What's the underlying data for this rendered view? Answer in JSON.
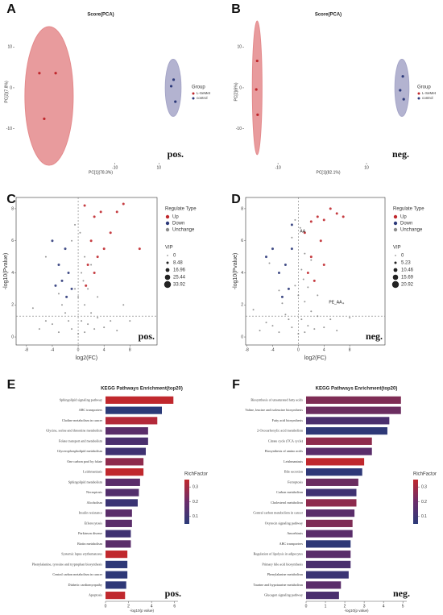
{
  "chart_data": [
    {
      "type": "pca",
      "panel": "A",
      "title": "Score(PCA)",
      "xlabel": "PC[1](78.3%)",
      "ylabel": "PC[2](7.8%)",
      "xlim": [
        -55,
        22
      ],
      "xticks": [
        -10,
        10
      ],
      "ylim": [
        -18,
        16
      ],
      "yticks": [
        -10,
        0,
        10
      ],
      "legend_title": "Group",
      "annotation": "pos.",
      "series": [
        {
          "name": "L-SeMet",
          "color": "#c0282d",
          "x": [
            -44.4,
            -37,
            -42.2
          ],
          "values": [
            3.6,
            3.6,
            -7.6
          ],
          "ellipse": {
            "cx": -40,
            "cy": -2,
            "rx": 11,
            "ry": 17,
            "color": "#e48a8c"
          }
        },
        {
          "name": "control",
          "color": "#2d3a7a",
          "x": [
            15.6,
            16.7,
            17.5
          ],
          "values": [
            0.4,
            2,
            -3.4
          ],
          "ellipse": {
            "cx": 16.5,
            "cy": 0,
            "rx": 3.6,
            "ry": 7,
            "color": "#a6a6c8"
          }
        }
      ]
    },
    {
      "type": "pca",
      "panel": "B",
      "title": "Score(PCA)",
      "xlabel": "PC[1](82.1%)",
      "ylabel": "PC[2](6%)",
      "xlim": [
        -17.3,
        20
      ],
      "xticks": [
        -10,
        10
      ],
      "ylim": [
        -18,
        16
      ],
      "yticks": [
        -10,
        0,
        10
      ],
      "legend_title": "Group",
      "annotation": "neg.",
      "series": [
        {
          "name": "L-SeMet",
          "color": "#c0282d",
          "x": [
            -14.7,
            -14.9,
            -14.6
          ],
          "values": [
            6.6,
            -0.4,
            -6.6
          ],
          "ellipse": {
            "cx": -14.7,
            "cy": 0,
            "rx": 1.1,
            "ry": 16.4,
            "color": "#e48a8c"
          }
        },
        {
          "name": "control",
          "color": "#2d3a7a",
          "x": [
            18.2,
            17.6,
            18.4
          ],
          "values": [
            2.8,
            -0.6,
            -2.8
          ],
          "ellipse": {
            "cx": 18,
            "cy": 0,
            "rx": 1.6,
            "ry": 7,
            "color": "#a6a6c8"
          }
        }
      ]
    },
    {
      "type": "volcano",
      "panel": "C",
      "xlabel": "log2(FC)",
      "ylabel": "-log10(Pvalue)",
      "xlim": [
        -9.6,
        12.2
      ],
      "xticks": [
        -8,
        -4,
        0,
        4,
        8
      ],
      "ylim": [
        -0.5,
        8.7
      ],
      "yticks": [
        0,
        2,
        4,
        6,
        8
      ],
      "thresholds": {
        "x": 0,
        "y": 1.3
      },
      "legend_title": "Regulate Type",
      "size_title": "VIP",
      "size_legend": [
        0,
        8.48,
        16.96,
        25.44,
        33.92
      ],
      "annotation": "pos.",
      "series": [
        {
          "name": "Up",
          "color": "#c0282d",
          "x": [
            1,
            2.5,
            3.5,
            6,
            7,
            5,
            2,
            3,
            1.5,
            4,
            9.5,
            2.5,
            1.2
          ],
          "values": [
            8.2,
            7.5,
            7.8,
            7.8,
            8.3,
            6.5,
            6,
            5,
            4.5,
            5.5,
            5.5,
            4,
            3.2
          ]
        },
        {
          "name": "Down",
          "color": "#2d3a7a",
          "x": [
            -2,
            -3,
            -1.5,
            -2.5,
            -1,
            -4,
            -3.5,
            -1.8
          ],
          "values": [
            5.5,
            4.5,
            4,
            3.5,
            3,
            6,
            3.2,
            2.5
          ]
        },
        {
          "name": "Unchange",
          "color": "#8c8c8c",
          "x": [
            -6,
            -5,
            -4,
            -3,
            -2,
            -1,
            0,
            0.5,
            1,
            1.5,
            2,
            2.5,
            3,
            4,
            5,
            6,
            -0.5,
            0.5,
            1,
            -1,
            0.3,
            1.5,
            -2.5,
            3,
            -7,
            7,
            -5,
            2,
            0,
            -1.5,
            1,
            8,
            -0.5,
            0.8,
            -3
          ],
          "values": [
            0.5,
            1,
            0.8,
            0.3,
            1.5,
            0.5,
            0.2,
            1,
            2,
            0.8,
            1.5,
            0.5,
            1.2,
            0.6,
            1,
            0.4,
            3,
            4,
            5,
            6,
            6.5,
            3,
            2,
            2.5,
            1.8,
            2,
            5,
            4.5,
            2.5,
            1,
            0.3,
            1,
            7,
            3.5,
            2.7
          ]
        }
      ]
    },
    {
      "type": "volcano",
      "panel": "D",
      "xlabel": "log2(FC)",
      "ylabel": "-log10(Pvalue)",
      "xlim": [
        -8.2,
        13.5
      ],
      "xticks": [
        -8,
        -4,
        0,
        4,
        8
      ],
      "ylim": [
        -0.5,
        8.7
      ],
      "yticks": [
        0,
        2,
        4,
        6,
        8
      ],
      "thresholds": {
        "x": 0,
        "y": 1.3
      },
      "legend_title": "Regulate Type",
      "size_title": "VIP",
      "size_legend": [
        0,
        5.23,
        10.46,
        15.69,
        20.92
      ],
      "annotation": "neg.",
      "annotations": [
        "AA",
        "PE_AA"
      ],
      "series": [
        {
          "name": "Up",
          "color": "#c0282d",
          "x": [
            2,
            3,
            4,
            5,
            6,
            7,
            3.5,
            2,
            1.5,
            2.5,
            4,
            1
          ],
          "values": [
            7.2,
            7.5,
            7.3,
            8,
            7.7,
            7.5,
            6,
            5,
            4,
            3.5,
            4.5,
            6.5
          ]
        },
        {
          "name": "Down",
          "color": "#2d3a7a",
          "x": [
            -1,
            -2,
            -3,
            -1.5,
            -4,
            -2.5,
            -5,
            -1
          ],
          "values": [
            5.5,
            4.5,
            4,
            3,
            5.5,
            2.5,
            5,
            7
          ]
        },
        {
          "name": "Unchange",
          "color": "#8c8c8c",
          "x": [
            -6,
            -5,
            -4,
            -3,
            -2,
            -1,
            0,
            0.5,
            1,
            1.5,
            2,
            2.5,
            3,
            4,
            5,
            6,
            -0.5,
            0.5,
            1,
            -1,
            0.3,
            1.5,
            -2.5,
            3,
            -7,
            7,
            -4.5,
            2,
            0,
            -1.5,
            1,
            8,
            -0.5,
            0.8,
            -3
          ],
          "values": [
            0.4,
            0.9,
            0.7,
            0.3,
            1.4,
            0.6,
            0.2,
            1.1,
            2.2,
            0.7,
            1.6,
            0.5,
            1.3,
            0.6,
            1.1,
            0.4,
            3.2,
            4.2,
            5.2,
            6.2,
            6.8,
            3.1,
            2.1,
            2.6,
            1.7,
            2.1,
            4.6,
            4.8,
            2.6,
            1.1,
            0.3,
            1.2,
            7.3,
            3.6,
            2.9
          ]
        }
      ]
    },
    {
      "type": "barh",
      "panel": "E",
      "title": "KEGG Pathways Enrichment(top20)",
      "xlabel": "-log10(p value)",
      "xlim": [
        0,
        6.3
      ],
      "xticks": [
        0,
        2,
        4,
        6
      ],
      "annotation": "pos.",
      "categories": [
        "Sphingolipid signaling pathway",
        "ABC transporters",
        "Choline metabolism in cancer",
        "Glycine, serine and threonine metabolism",
        "Folate transport and metabolism",
        "Glycerophospholipid metabolism",
        "One carbon pool by folate",
        "Leishmaniasis",
        "Sphingolipid metabolism",
        "Necroptosis",
        "Alcoholism",
        "Insulin resistance",
        "Efferocytosis",
        "Parkinson disease",
        "Biotin metabolism",
        "Systemic lupus erythematosus",
        "Phenylalanine, tyrosine and tryptophan biosynthesis",
        "Central carbon metabolism in cancer",
        "Diabetic cardiomyopathy",
        "Apoptosis"
      ],
      "values": [
        5.9,
        4.9,
        4.5,
        3.7,
        3.7,
        3.5,
        3.3,
        3.3,
        3.0,
        2.9,
        2.8,
        2.3,
        2.3,
        2.2,
        2.2,
        1.9,
        1.9,
        1.9,
        1.8,
        1.7
      ],
      "colors": [
        "#c0282d",
        "#2b3a78",
        "#b3293a",
        "#5a2d6a",
        "#4a2f6e",
        "#3f3272",
        "#8e2b4d",
        "#c0282d",
        "#5a2d6a",
        "#522e6c",
        "#3a3474",
        "#5a2d6a",
        "#5a2d6a",
        "#3f3272",
        "#5a2d6a",
        "#c0282d",
        "#2e3877",
        "#2e3877",
        "#2e3877",
        "#c0282d"
      ],
      "colorbar_title": "RichFactor",
      "colorbar_lim": [
        0.05,
        0.35
      ],
      "colorbar_ticks": [
        0.1,
        0.2,
        0.3
      ],
      "colorbar_colors": [
        "#2b3a78",
        "#6b2d6b",
        "#c0282d"
      ]
    },
    {
      "type": "barh",
      "panel": "F",
      "title": "KEGG Pathways Enrichment(top20)",
      "xlabel": "-log10(p value)",
      "xlim": [
        0,
        5.2
      ],
      "xticks": [
        0,
        1,
        2,
        3,
        4,
        5
      ],
      "annotation": "neg.",
      "categories": [
        "Biosynthesis of unsaturated fatty acids",
        "Valine, leucine and isoleucine biosynthesis",
        "Fatty acid biosynthesis",
        "2-Oxocarboxylic acid metabolism",
        "Citrate cycle (TCA cycle)",
        "Biosynthesis of amino acids",
        "Leishmaniasis",
        "Bile secretion",
        "Ferroptosis",
        "Carbon metabolism",
        "Cholesterol metabolism",
        "Central carbon metabolism in cancer",
        "Oxytocin signaling pathway",
        "Amoebiasis",
        "ABC transporters",
        "Regulation of lipolysis in adipocytes",
        "Primary bile acid biosynthesis",
        "Phenylalanine metabolism",
        "Taurine and hypotaurine metabolism",
        "Glucagon signaling pathway"
      ],
      "values": [
        4.9,
        4.9,
        4.3,
        4.2,
        3.4,
        3.4,
        3.0,
        2.9,
        2.7,
        2.6,
        2.6,
        2.5,
        2.4,
        2.4,
        2.3,
        2.3,
        2.3,
        2.2,
        1.8,
        1.7
      ],
      "colors": [
        "#7e2c55",
        "#6b2d60",
        "#4a2f6e",
        "#2e3877",
        "#8e2b4d",
        "#5a2d6a",
        "#c0282d",
        "#2e3877",
        "#6b2d60",
        "#3f3272",
        "#8e2b4d",
        "#5a2d6a",
        "#7e2c55",
        "#5a2d6a",
        "#2e3877",
        "#5a2d6a",
        "#4a2f6e",
        "#3a3474",
        "#5a2d6a",
        "#4a2f6e"
      ],
      "colorbar_title": "RichFactor",
      "colorbar_lim": [
        0.05,
        0.35
      ],
      "colorbar_ticks": [
        0.1,
        0.2,
        0.3
      ],
      "colorbar_colors": [
        "#2b3a78",
        "#6b2d6b",
        "#c0282d"
      ]
    }
  ]
}
